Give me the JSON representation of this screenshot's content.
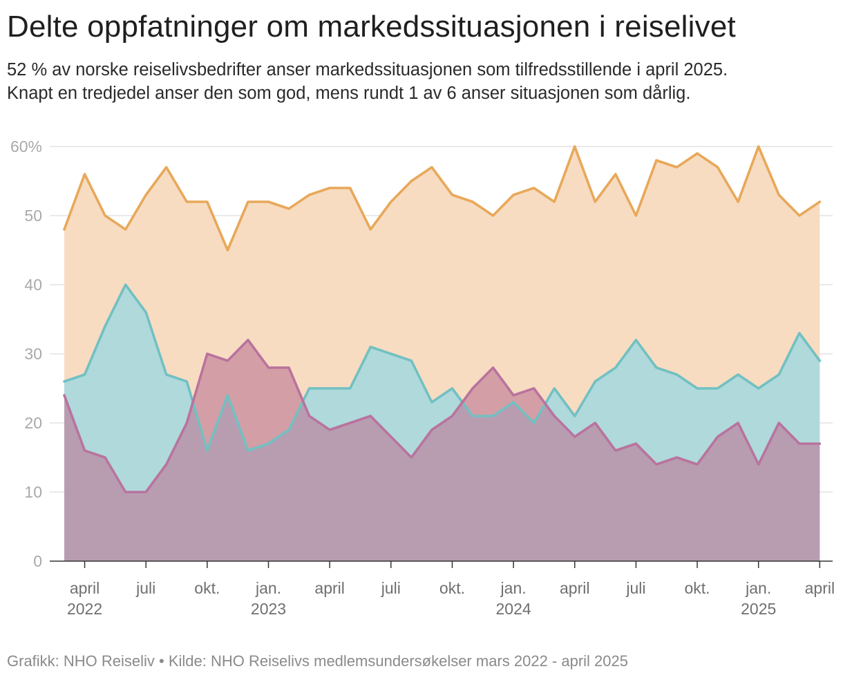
{
  "title": "Delte oppfatninger om markedssituasjonen i reiselivet",
  "subtitle": [
    "52 % av norske reiselivsbedrifter anser markedssituasjonen som tilfredsstillende i april 2025.",
    "Knapt en tredjedel anser den som god, mens rundt 1 av 6 anser situasjonen som dårlig."
  ],
  "footer": "Grafikk: NHO Reiseliv • Kilde: NHO Reiselivs medlemsundersøkelser mars 2022 - april 2025",
  "chart_data": {
    "type": "area",
    "x_start": "2022-03",
    "x_end": "2025-04",
    "x_unit": "month",
    "ylim": [
      0,
      60
    ],
    "yticks": [
      {
        "value": 0,
        "label": "0"
      },
      {
        "value": 10,
        "label": "10"
      },
      {
        "value": 20,
        "label": "20"
      },
      {
        "value": 30,
        "label": "30"
      },
      {
        "value": 40,
        "label": "40"
      },
      {
        "value": 50,
        "label": "50"
      },
      {
        "value": 60,
        "label": "60%"
      }
    ],
    "xticks": [
      {
        "month": "2022-04",
        "label": "april",
        "year": "2022"
      },
      {
        "month": "2022-07",
        "label": "juli",
        "year": ""
      },
      {
        "month": "2022-10",
        "label": "okt.",
        "year": ""
      },
      {
        "month": "2023-01",
        "label": "jan.",
        "year": "2023"
      },
      {
        "month": "2023-04",
        "label": "april",
        "year": ""
      },
      {
        "month": "2023-07",
        "label": "juli",
        "year": ""
      },
      {
        "month": "2023-10",
        "label": "okt.",
        "year": ""
      },
      {
        "month": "2024-01",
        "label": "jan.",
        "year": "2024"
      },
      {
        "month": "2024-04",
        "label": "april",
        "year": ""
      },
      {
        "month": "2024-07",
        "label": "juli",
        "year": ""
      },
      {
        "month": "2024-10",
        "label": "okt.",
        "year": ""
      },
      {
        "month": "2025-01",
        "label": "jan.",
        "year": "2025"
      },
      {
        "month": "2025-04",
        "label": "april",
        "year": ""
      }
    ],
    "grid": true,
    "series": [
      {
        "color": "#e8a85a",
        "fill": "#f7dcc1",
        "values": [
          48,
          56,
          50,
          48,
          53,
          57,
          52,
          52,
          45,
          52,
          52,
          51,
          53,
          54,
          54,
          48,
          52,
          55,
          57,
          53,
          52,
          50,
          53,
          54,
          52,
          60,
          52,
          56,
          50,
          58,
          57,
          59,
          57,
          52,
          60,
          53,
          50,
          52
        ]
      },
      {
        "color": "#72c0c2",
        "fill": "#afd9db",
        "values": [
          26,
          27,
          34,
          40,
          36,
          27,
          26,
          16,
          24,
          16,
          17,
          19,
          25,
          25,
          25,
          31,
          30,
          29,
          23,
          25,
          21,
          21,
          23,
          20,
          25,
          21,
          26,
          28,
          32,
          28,
          27,
          25,
          25,
          27,
          25,
          27,
          33,
          29
        ]
      },
      {
        "color": "#b9739e",
        "fill": "rgba(190,120,150,0.62)",
        "values": [
          24,
          16,
          15,
          10,
          10,
          14,
          20,
          30,
          29,
          32,
          28,
          28,
          21,
          19,
          20,
          21,
          18,
          15,
          19,
          21,
          25,
          28,
          24,
          25,
          21,
          18,
          20,
          16,
          17,
          14,
          15,
          14,
          18,
          20,
          14,
          20,
          17,
          17
        ]
      }
    ]
  }
}
